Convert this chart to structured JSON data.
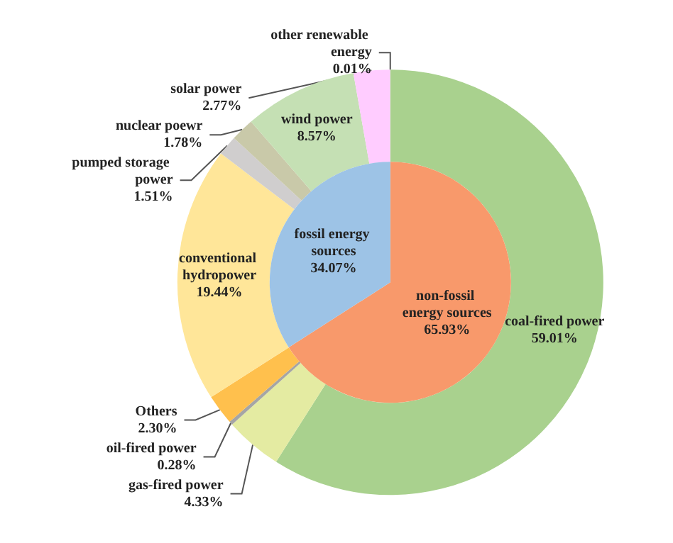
{
  "chart_data": [
    {
      "type": "donut",
      "categories": [
        "coal-fired power",
        "gas-fired power",
        "oil-fired power",
        "Others",
        "conventional hydropower",
        "pumped storage power",
        "nuclear poewr",
        "wind power",
        "solar power",
        "other renewable energy"
      ],
      "values": [
        59.01,
        4.33,
        0.28,
        2.3,
        19.44,
        1.51,
        1.78,
        8.57,
        2.77,
        0.01
      ],
      "colors": [
        "#a9d18e",
        "#e4eba2",
        "#a5a5a5",
        "#ffc04d",
        "#ffe699",
        "#d0cece",
        "#c9c9a9",
        "#c5e0b4",
        "#ffccff",
        "#c5e0b4"
      ],
      "value_labels": [
        "59.01%",
        "4.33%",
        "0.28%",
        "2.30%",
        "19.44%",
        "1.51%",
        "1.78%",
        "8.57%",
        "2.77%",
        "0.01%"
      ],
      "legend": false
    },
    {
      "type": "pie",
      "categories": [
        "non-fossil energy sources",
        "fossil energy sources"
      ],
      "values": [
        65.93,
        34.07
      ],
      "colors": [
        "#f8996b",
        "#9dc3e6"
      ],
      "value_labels": [
        "65.93%",
        "34.07%"
      ],
      "legend": false
    }
  ]
}
